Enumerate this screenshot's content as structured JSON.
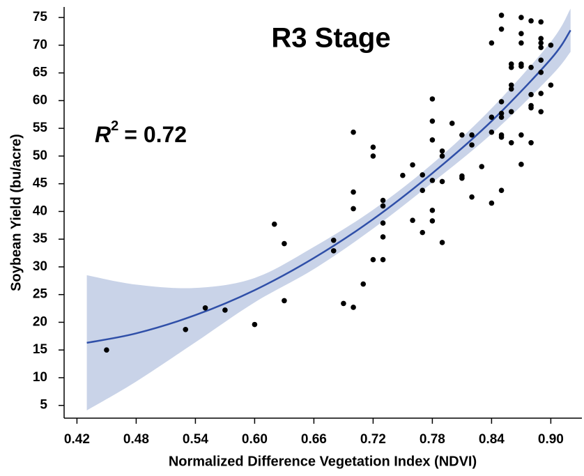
{
  "chart_data": {
    "type": "scatter",
    "title": "R3 Stage",
    "annotation": {
      "symbol": "R",
      "superscript": "2",
      "text": "= 0.72"
    },
    "x_label": "Normalized Difference Vegetation Index (NDVI)",
    "y_label": "Soybean Yield (bu/acre)",
    "xlim": [
      0.407,
      0.9315
    ],
    "ylim": [
      2.7,
      76.9
    ],
    "xticks": [
      0.42,
      0.48,
      0.54,
      {
        "value": 0.6,
        "label": "0.60"
      },
      0.66,
      0.72,
      0.78,
      0.84,
      {
        "value": 0.9,
        "label": "0.90"
      }
    ],
    "yticks": [
      5,
      10,
      15,
      20,
      25,
      30,
      35,
      40,
      45,
      50,
      55,
      60,
      65,
      70,
      75
    ],
    "series": [
      {
        "color": "#000000",
        "x": [
          0.45,
          0.53,
          0.55,
          0.57,
          0.6,
          0.62,
          0.63,
          0.63,
          0.68,
          0.68,
          0.69,
          0.7,
          0.7,
          0.7,
          0.7,
          0.71,
          0.72,
          0.72,
          0.72,
          0.73,
          0.73,
          0.73,
          0.73,
          0.73,
          0.75,
          0.76,
          0.76,
          0.77,
          0.77,
          0.77,
          0.78,
          0.78,
          0.78,
          0.78,
          0.78,
          0.78,
          0.79,
          0.79,
          0.79,
          0.79,
          0.8,
          0.81,
          0.81,
          0.81,
          0.82,
          0.82,
          0.82,
          0.83,
          0.84,
          0.84,
          0.84,
          0.84,
          0.85,
          0.85,
          0.85,
          0.85,
          0.85,
          0.85,
          0.85,
          0.85,
          0.86,
          0.86,
          0.86,
          0.86,
          0.86,
          0.86,
          0.87,
          0.87,
          0.87,
          0.87,
          0.87,
          0.87,
          0.87,
          0.88,
          0.88,
          0.88,
          0.88,
          0.88,
          0.88,
          0.89,
          0.89,
          0.89,
          0.89,
          0.89,
          0.89,
          0.89,
          0.89,
          0.9,
          0.9
        ],
        "values": [
          15.0,
          18.7,
          22.6,
          22.2,
          19.6,
          37.7,
          34.2,
          23.9,
          34.8,
          32.9,
          23.4,
          22.7,
          40.5,
          43.5,
          54.3,
          26.9,
          31.3,
          50.0,
          51.6,
          31.3,
          35.4,
          37.9,
          41.0,
          42.0,
          46.5,
          38.4,
          48.4,
          36.2,
          43.8,
          46.6,
          38.3,
          40.2,
          45.6,
          52.9,
          56.3,
          60.3,
          34.4,
          45.4,
          50.0,
          50.9,
          55.9,
          53.8,
          46.0,
          46.4,
          42.6,
          52.0,
          53.8,
          48.1,
          41.5,
          54.3,
          57.0,
          70.4,
          43.8,
          53.4,
          53.8,
          57.0,
          57.7,
          59.8,
          72.9,
          75.4,
          52.4,
          58.0,
          62.1,
          62.8,
          66.0,
          66.6,
          48.5,
          53.8,
          66.2,
          66.6,
          70.4,
          72.1,
          75.0,
          52.4,
          58.7,
          59.1,
          61.1,
          66.0,
          74.4,
          58.0,
          61.3,
          65.1,
          67.3,
          69.6,
          70.4,
          71.2,
          74.2,
          62.8,
          70.0
        ]
      }
    ],
    "fit": {
      "color": "#2f4fa8",
      "band_color": "#c9d3e8",
      "x": [
        0.43,
        0.48,
        0.54,
        0.6,
        0.66,
        0.72,
        0.78,
        0.84,
        0.9,
        0.92
      ],
      "values": [
        16.3,
        18.0,
        21.3,
        25.8,
        31.6,
        38.6,
        46.9,
        56.3,
        67.5,
        72.7
      ],
      "upper": [
        28.5,
        26.8,
        26.2,
        28.0,
        33.6,
        40.3,
        48.6,
        58.6,
        70.6,
        76.6
      ],
      "lower": [
        4.1,
        9.3,
        16.4,
        23.6,
        29.6,
        36.9,
        45.2,
        54.0,
        64.4,
        68.8
      ]
    }
  }
}
